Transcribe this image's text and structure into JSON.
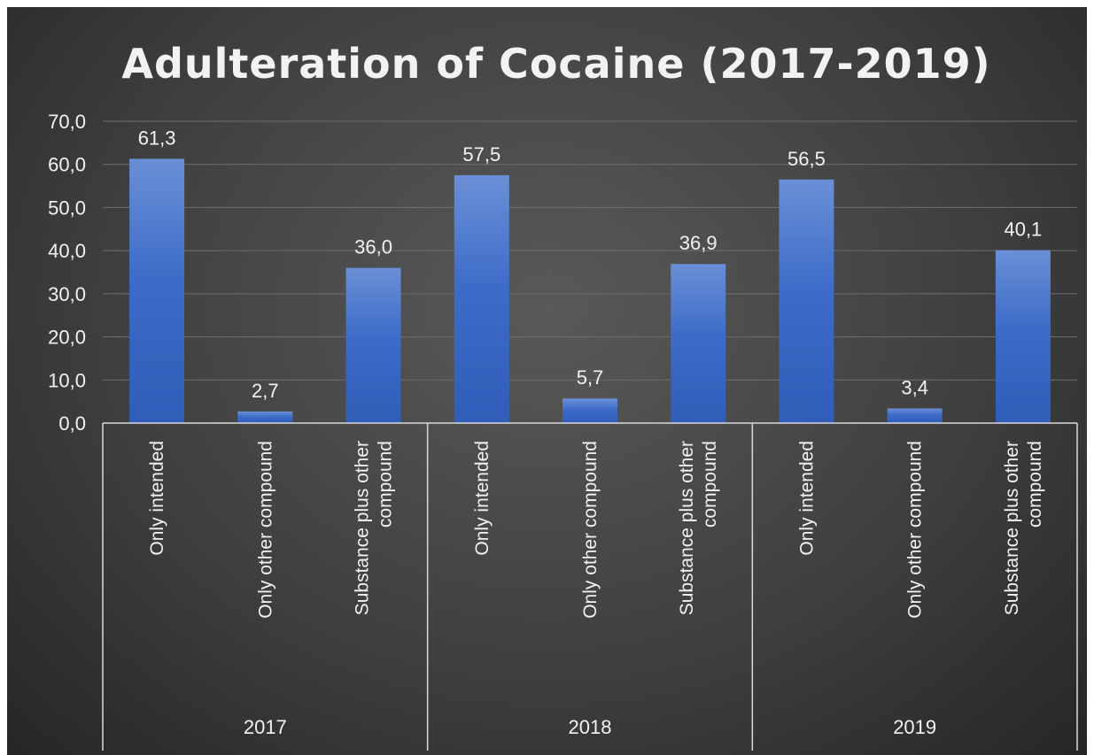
{
  "chart_data": {
    "type": "bar",
    "title": "Adulteration of Cocaine (2017-2019)",
    "xlabel": "",
    "ylabel": "",
    "ylim": [
      0,
      70
    ],
    "yticks": [
      "0,0",
      "10,0",
      "20,0",
      "30,0",
      "40,0",
      "50,0",
      "60,0",
      "70,0"
    ],
    "ytick_values": [
      0,
      10,
      20,
      30,
      40,
      50,
      60,
      70
    ],
    "grid": true,
    "legend": "none",
    "bar_color": "#4472c4",
    "groups": [
      {
        "label": "2017",
        "categories": [
          [
            "Only intended"
          ],
          [
            "Only other compound"
          ],
          [
            "Substance plus other",
            "compound"
          ]
        ],
        "values": [
          61.3,
          2.7,
          36.0
        ],
        "value_labels": [
          "61,3",
          "2,7",
          "36,0"
        ]
      },
      {
        "label": "2018",
        "categories": [
          [
            "Only intended"
          ],
          [
            "Only other compound"
          ],
          [
            "Substance plus other",
            "compound"
          ]
        ],
        "values": [
          57.5,
          5.7,
          36.9
        ],
        "value_labels": [
          "57,5",
          "5,7",
          "36,9"
        ]
      },
      {
        "label": "2019",
        "categories": [
          [
            "Only intended"
          ],
          [
            "Only other compound"
          ],
          [
            "Substance plus other",
            "compound"
          ]
        ],
        "values": [
          56.5,
          3.4,
          40.1
        ],
        "value_labels": [
          "56,5",
          "3,4",
          "40,1"
        ]
      }
    ]
  }
}
